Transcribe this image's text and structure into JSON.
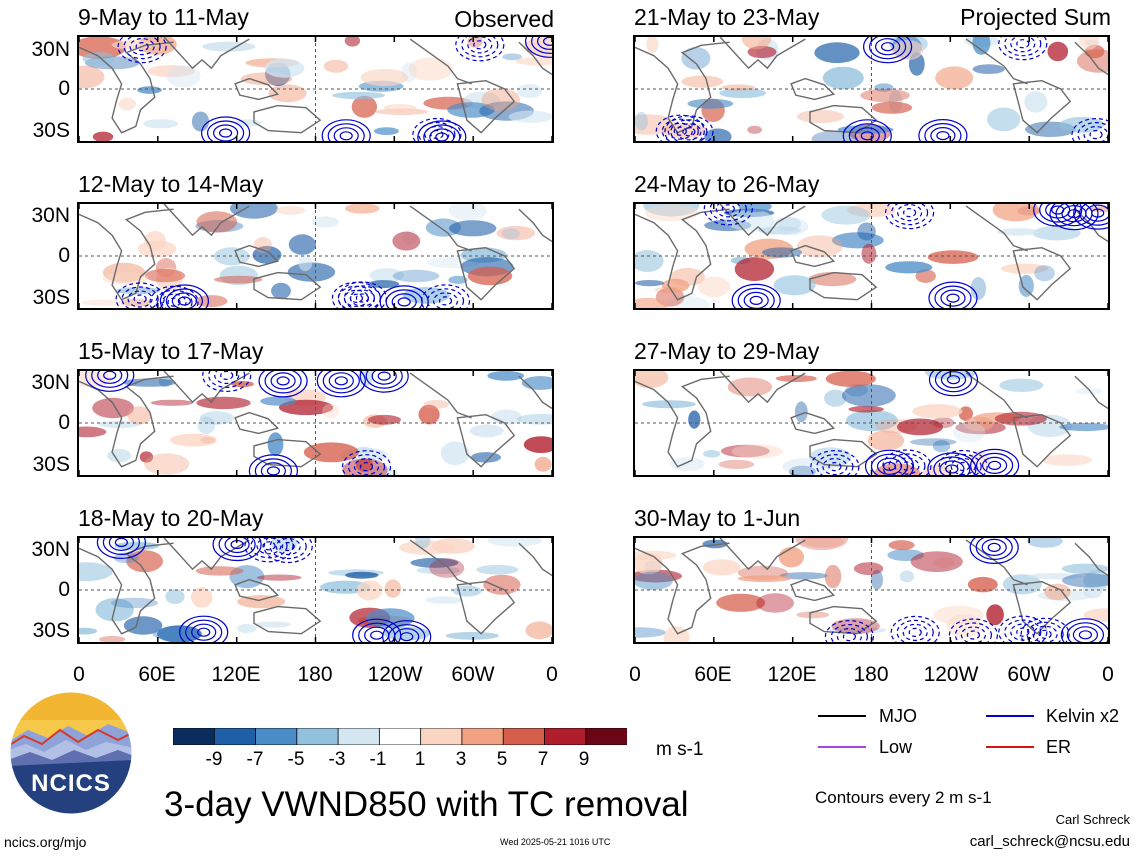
{
  "colors": {
    "mjo": "#000000",
    "kelvin": "#0000cc",
    "low": "#aa44dd",
    "er": "#dd1111",
    "coast": "#6a6a6a",
    "colorbar": [
      "#0b2d5e",
      "#1f5fa8",
      "#4a8cc7",
      "#92c1de",
      "#d3e6f2",
      "#ffffff",
      "#fbd5c3",
      "#f1a283",
      "#d65f4c",
      "#b01d2c",
      "#6b0617"
    ]
  },
  "panel_tags": {
    "observed": "Observed",
    "projected": "Projected Sum"
  },
  "left_panels": [
    {
      "title": "9-May to 11-May"
    },
    {
      "title": "12-May to 14-May"
    },
    {
      "title": "15-May to 17-May"
    },
    {
      "title": "18-May to 20-May"
    }
  ],
  "right_panels": [
    {
      "title": "21-May to 23-May"
    },
    {
      "title": "24-May to 26-May"
    },
    {
      "title": "27-May to 29-May"
    },
    {
      "title": "30-May to 1-Jun"
    }
  ],
  "lat_labels": [
    "30N",
    "0",
    "30S"
  ],
  "lon_labels": [
    "0",
    "60E",
    "120E",
    "180",
    "120W",
    "60W",
    "0"
  ],
  "colorbar": {
    "ticks": [
      "-9",
      "-7",
      "-5",
      "-3",
      "-1",
      "1",
      "3",
      "5",
      "7",
      "9"
    ],
    "units": "m s-1"
  },
  "legend": {
    "mjo": "MJO",
    "kelvin": "Kelvin x2",
    "low": "Low",
    "er": "ER",
    "contours_note": "Contours every 2 m s-1"
  },
  "logo": {
    "text": "NCICS"
  },
  "main_title": "3-day VWND850 with TC removal",
  "footer": {
    "url": "ncics.org/mjo",
    "timestamp": "Wed 2025-05-21 1016 UTC",
    "author": "Carl Schreck",
    "email": "carl_schreck@ncsu.edu"
  }
}
